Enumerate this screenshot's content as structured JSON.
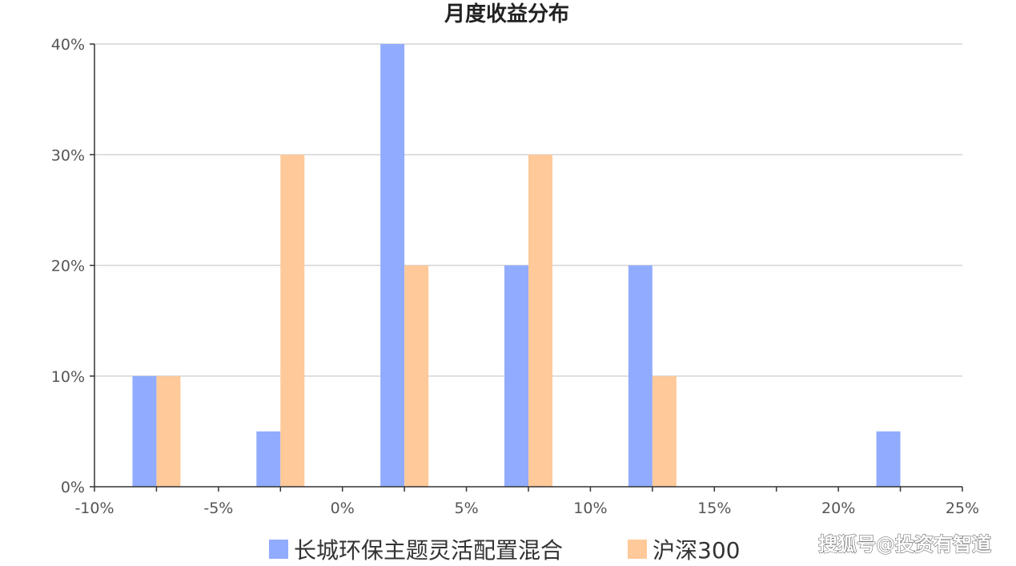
{
  "chart_data": {
    "type": "bar",
    "title": "月度收益分布",
    "xlabel": "",
    "ylabel": "",
    "x_ticks": [
      "-10%",
      "-5%",
      "0%",
      "5%",
      "10%",
      "15%",
      "20%",
      "25%"
    ],
    "y_ticks": [
      "0%",
      "10%",
      "20%",
      "30%",
      "40%"
    ],
    "xlim": [
      -10,
      25
    ],
    "ylim": [
      0,
      40
    ],
    "grid": true,
    "legend_position": "bottom",
    "bin_centers": [
      -7.5,
      -2.5,
      2.5,
      7.5,
      12.5,
      17.5,
      22.5
    ],
    "series": [
      {
        "name": "长城环保主题灵活配置混合",
        "color": "#91acff",
        "values": [
          10,
          5,
          40,
          20,
          20,
          0,
          5
        ]
      },
      {
        "name": "沪深300",
        "color": "#ffc999",
        "values": [
          10,
          30,
          20,
          30,
          10,
          0,
          0
        ]
      }
    ]
  },
  "watermark": "搜狐号@投资有智道"
}
